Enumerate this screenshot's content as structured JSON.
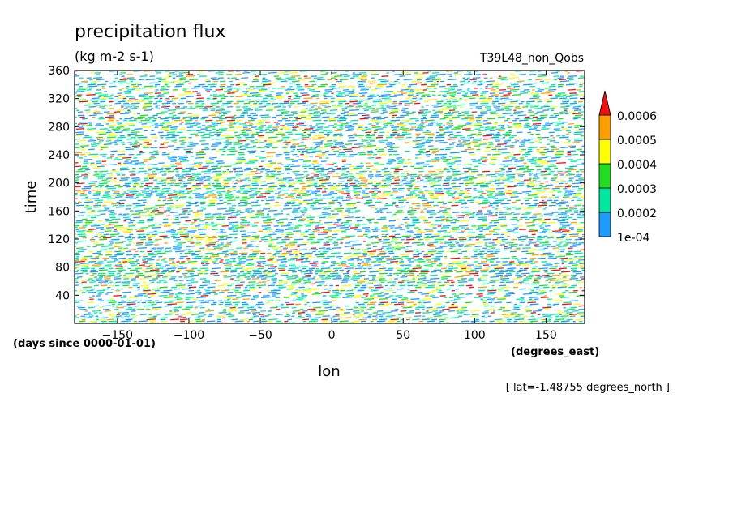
{
  "chart_data": {
    "type": "heatmap",
    "title": "precipitation flux",
    "units": "(kg m-2 s-1)",
    "experiment": "T39L48_non_Qobs",
    "xlabel": "lon",
    "x_units": "(degrees_east)",
    "ylabel": "time",
    "y_units": "(days since 0000-01-01)",
    "annotation": "[ lat=-1.48755 degrees_north ]",
    "xlim": [
      -180,
      177
    ],
    "ylim": [
      0,
      360
    ],
    "x_ticks": [
      -150,
      -100,
      -50,
      0,
      50,
      100,
      150
    ],
    "x_tick_labels": [
      "−150",
      "−100",
      "−50",
      "0",
      "50",
      "100",
      "150"
    ],
    "y_ticks": [
      40,
      80,
      120,
      160,
      200,
      240,
      280,
      320,
      360
    ],
    "y_tick_labels": [
      "40",
      "80",
      "120",
      "160",
      "200",
      "240",
      "280",
      "320",
      "360"
    ],
    "colorbar": {
      "levels": [
        0.0001,
        0.0002,
        0.0003,
        0.0004,
        0.0005,
        0.0006
      ],
      "labels": [
        "1e-04",
        "0.0002",
        "0.0003",
        "0.0004",
        "0.0005",
        "0.0006"
      ],
      "colors": [
        "#1e9bff",
        "#00e8a0",
        "#22dd22",
        "#ffff00",
        "#ffa000",
        "#ee1111"
      ],
      "overflow_color": "#ee1111",
      "extend": "max"
    },
    "background_color": "#ffffff",
    "pattern": "streaks tilted westward with time (propagating precipitation)"
  }
}
